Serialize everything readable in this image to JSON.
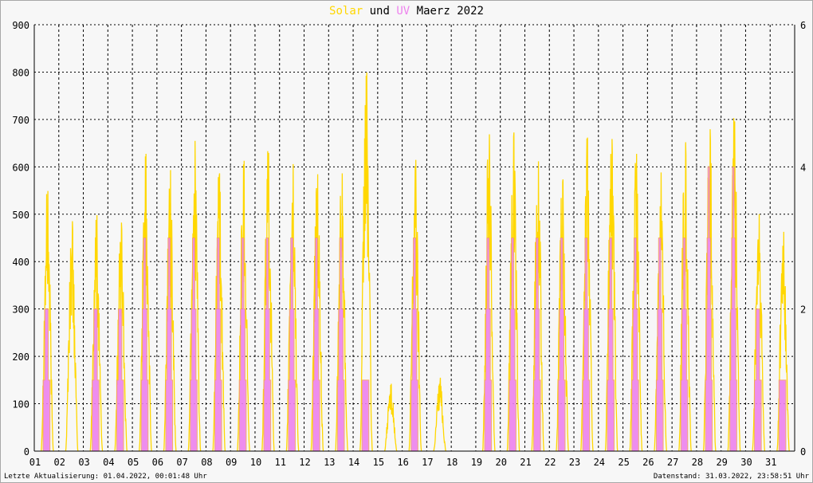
{
  "title": {
    "part1": "Solar",
    "part2": " und ",
    "part3": "UV",
    "part4": " Maerz 2022"
  },
  "footer": {
    "left": "Letzte Aktualisierung: 01.04.2022, 00:01:48 Uhr",
    "right": "Datenstand: 31.03.2022, 23:58:51 Uhr"
  },
  "colors": {
    "solar": "#ffd700",
    "uv": "#ee82ee",
    "uv_outline": "#f4a460",
    "grid": "#000000",
    "plot_bg": "#f7f7f7"
  },
  "chart_data": {
    "type": "area",
    "x_ticks": [
      "01",
      "02",
      "03",
      "04",
      "05",
      "06",
      "07",
      "08",
      "09",
      "10",
      "11",
      "12",
      "13",
      "14",
      "15",
      "16",
      "17",
      "18",
      "19",
      "20",
      "21",
      "22",
      "23",
      "24",
      "25",
      "26",
      "27",
      "28",
      "29",
      "30",
      "31"
    ],
    "y_left": {
      "range": [
        0,
        900
      ],
      "ticks": [
        0,
        100,
        200,
        300,
        400,
        500,
        600,
        700,
        800,
        900
      ]
    },
    "y_right": {
      "range": [
        0,
        6
      ],
      "ticks": [
        0,
        2,
        4,
        6
      ]
    },
    "grid": true,
    "series": [
      {
        "name": "Solar",
        "axis": "left",
        "daily_peak": [
          560,
          495,
          508,
          492,
          640,
          605,
          668,
          598,
          625,
          642,
          618,
          596,
          598,
          815,
          145,
          627,
          158,
          0,
          682,
          686,
          624,
          585,
          675,
          672,
          640,
          600,
          665,
          693,
          710,
          510,
          472
        ]
      },
      {
        "name": "UV",
        "axis": "right",
        "daily_peak": [
          2.0,
          0.0,
          2.0,
          2.0,
          3.0,
          3.0,
          3.0,
          3.0,
          3.0,
          3.0,
          3.0,
          3.0,
          3.0,
          1.0,
          0.0,
          3.0,
          0.0,
          0.0,
          3.0,
          3.0,
          3.0,
          3.0,
          3.0,
          3.0,
          3.0,
          3.0,
          3.0,
          4.0,
          4.0,
          2.0,
          1.0
        ]
      }
    ]
  }
}
